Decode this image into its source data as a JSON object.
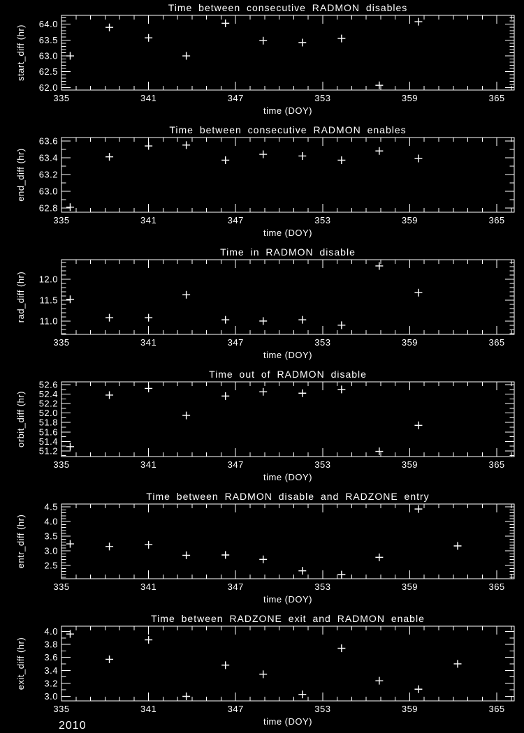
{
  "page": {
    "background": "#000000",
    "foreground": "#ffffff",
    "year_label": "2010",
    "marker_glyph": "plus-sign"
  },
  "chart_data": [
    {
      "type": "scatter",
      "title": "Time between consecutive RADMON disables",
      "xlabel": "time (DOY)",
      "ylabel": "start_diff (hr)",
      "marker": "plus",
      "color": "#ffffff",
      "xlim": [
        335,
        366.2
      ],
      "ylim": [
        61.92,
        64.28
      ],
      "xticks": [
        335,
        341,
        347,
        353,
        359,
        365
      ],
      "xminor_step": 1,
      "yticks": [
        62.0,
        62.5,
        63.0,
        63.5,
        64.0
      ],
      "yminor_step": 0.1,
      "x": [
        335.6,
        338.3,
        341.0,
        343.6,
        346.3,
        348.9,
        351.6,
        354.3,
        356.9,
        359.6
      ],
      "y": [
        63.0,
        63.9,
        63.57,
        63.0,
        64.03,
        63.48,
        63.42,
        63.55,
        62.07,
        64.08
      ]
    },
    {
      "type": "scatter",
      "title": "Time between consecutive RADMON enables",
      "xlabel": "time (DOY)",
      "ylabel": "end_diff (hr)",
      "marker": "plus",
      "color": "#ffffff",
      "xlim": [
        335,
        366.2
      ],
      "ylim": [
        62.75,
        63.64
      ],
      "xticks": [
        335,
        341,
        347,
        353,
        359,
        365
      ],
      "xminor_step": 1,
      "yticks": [
        62.8,
        63.0,
        63.2,
        63.4,
        63.6
      ],
      "yminor_step": 0.1,
      "x": [
        335.6,
        338.3,
        341.0,
        343.6,
        346.3,
        348.9,
        351.6,
        354.3,
        356.9,
        359.6
      ],
      "y": [
        62.81,
        63.41,
        63.54,
        63.55,
        63.37,
        63.44,
        63.42,
        63.37,
        63.48,
        63.39
      ]
    },
    {
      "type": "scatter",
      "title": "Time in RADMON disable",
      "xlabel": "time (DOY)",
      "ylabel": "rad_diff (hr)",
      "marker": "plus",
      "color": "#ffffff",
      "xlim": [
        335,
        366.2
      ],
      "ylim": [
        10.68,
        12.47
      ],
      "xticks": [
        335,
        341,
        347,
        353,
        359,
        365
      ],
      "xminor_step": 1,
      "yticks": [
        11.0,
        11.5,
        12.0
      ],
      "yminor_step": 0.1,
      "x": [
        335.6,
        338.3,
        341.0,
        343.6,
        346.3,
        348.9,
        351.6,
        354.3,
        356.9,
        359.6
      ],
      "y": [
        11.52,
        11.08,
        11.08,
        11.63,
        11.03,
        11.0,
        11.03,
        10.9,
        12.32,
        11.68
      ]
    },
    {
      "type": "scatter",
      "title": "Time out of RADMON disable",
      "xlabel": "time (DOY)",
      "ylabel": "orbit_diff (hr)",
      "marker": "plus",
      "color": "#ffffff",
      "xlim": [
        335,
        366.2
      ],
      "ylim": [
        51.08,
        52.66
      ],
      "xticks": [
        335,
        341,
        347,
        353,
        359,
        365
      ],
      "xminor_step": 1,
      "yticks": [
        51.2,
        51.4,
        51.6,
        51.8,
        52.0,
        52.2,
        52.4,
        52.6
      ],
      "yminor_step": 0.1,
      "x": [
        335.6,
        338.3,
        341.0,
        343.6,
        346.3,
        348.9,
        351.6,
        354.3,
        356.9,
        359.6
      ],
      "y": [
        51.29,
        52.38,
        52.52,
        51.95,
        52.36,
        52.45,
        52.42,
        52.5,
        51.19,
        51.74
      ]
    },
    {
      "type": "scatter",
      "title": "Time between RADMON disable and RADZONE entry",
      "xlabel": "time (DOY)",
      "ylabel": "entr_diff (hr)",
      "marker": "plus",
      "color": "#ffffff",
      "xlim": [
        335,
        366.2
      ],
      "ylim": [
        2.05,
        4.6
      ],
      "xticks": [
        335,
        341,
        347,
        353,
        359,
        365
      ],
      "xminor_step": 1,
      "yticks": [
        2.5,
        3.0,
        3.5,
        4.0,
        4.5
      ],
      "yminor_step": 0.1,
      "x": [
        335.6,
        338.3,
        341.0,
        343.6,
        346.3,
        348.9,
        351.6,
        354.3,
        356.9,
        359.6,
        362.3
      ],
      "y": [
        3.24,
        3.15,
        3.21,
        2.85,
        2.86,
        2.71,
        2.32,
        2.19,
        2.78,
        4.43,
        3.17
      ]
    },
    {
      "type": "scatter",
      "title": "Time between RADZONE exit and RADMON enable",
      "xlabel": "time (DOY)",
      "ylabel": "exit_diff (hr)",
      "marker": "plus",
      "color": "#ffffff",
      "xlim": [
        335,
        366.2
      ],
      "ylim": [
        2.93,
        4.08
      ],
      "xticks": [
        335,
        341,
        347,
        353,
        359,
        365
      ],
      "xminor_step": 1,
      "yticks": [
        3.0,
        3.2,
        3.4,
        3.6,
        3.8,
        4.0
      ],
      "yminor_step": 0.1,
      "x": [
        335.6,
        338.3,
        341.0,
        343.6,
        346.3,
        348.9,
        351.6,
        354.3,
        356.9,
        359.6,
        362.3
      ],
      "y": [
        3.96,
        3.57,
        3.87,
        3.0,
        3.48,
        3.34,
        3.03,
        3.74,
        3.24,
        3.11,
        3.5
      ]
    }
  ]
}
